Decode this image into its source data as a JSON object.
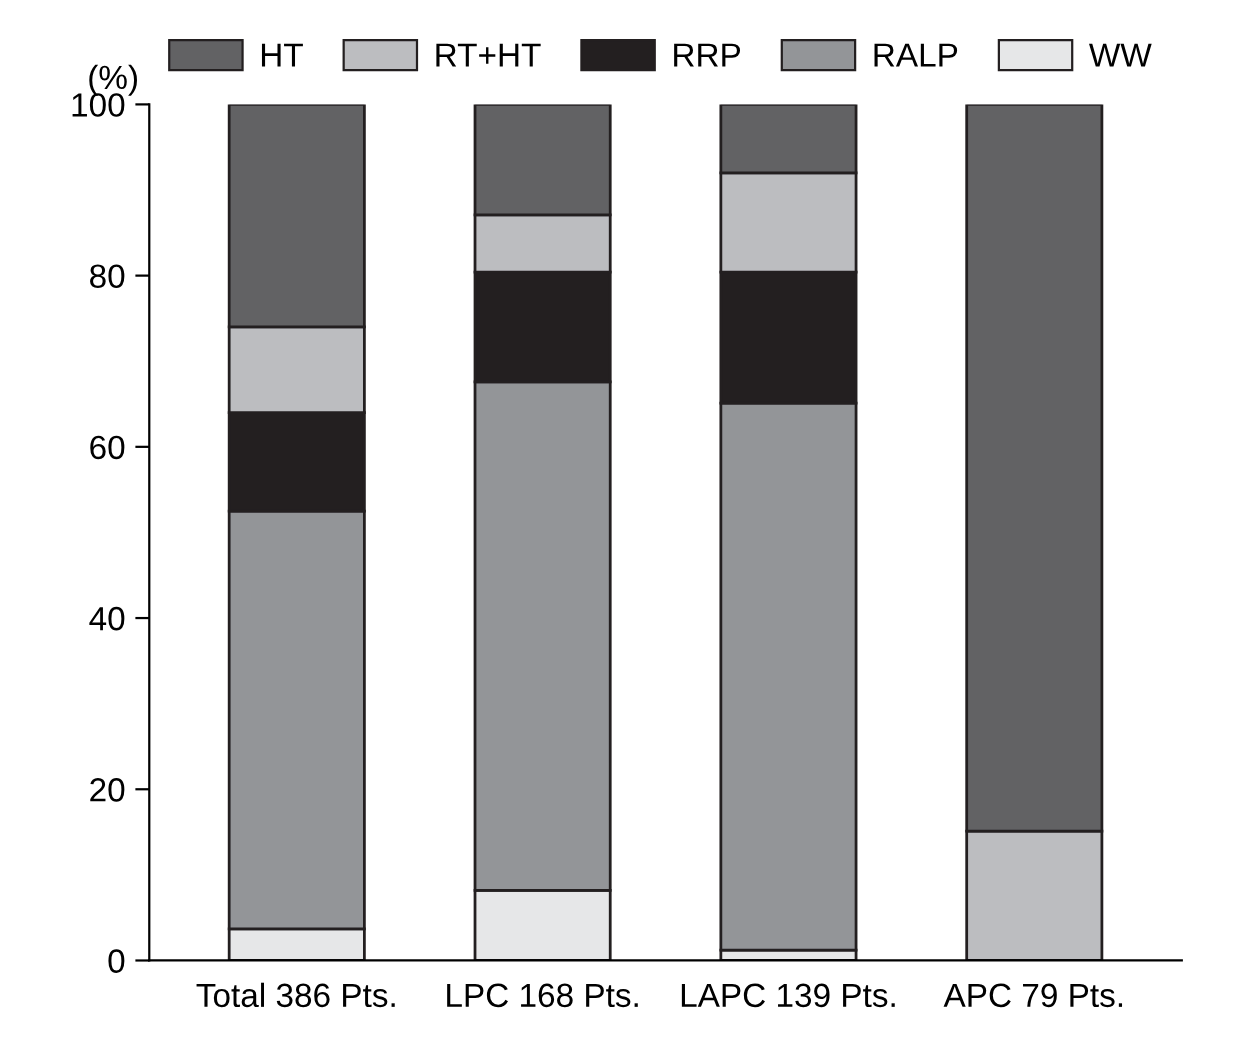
{
  "chart_data": {
    "type": "bar",
    "stacked": true,
    "ylabel": "(%)",
    "categories": [
      "Total 386 Pts.",
      "LPC 168 Pts.",
      "LAPC 139 Pts.",
      "APC 79 Pts."
    ],
    "series": [
      {
        "name": "WW",
        "color": "#e6e7e8",
        "values": [
          3.7,
          8.2,
          1.2,
          0
        ]
      },
      {
        "name": "RALP",
        "color": "#939598",
        "values": [
          48.8,
          59.4,
          63.9,
          0
        ]
      },
      {
        "name": "RRP",
        "color": "#231f20",
        "values": [
          11.5,
          12.8,
          15.3,
          0
        ]
      },
      {
        "name": "RT+HT",
        "color": "#bcbdc0",
        "values": [
          10.0,
          6.7,
          11.6,
          15.1
        ]
      },
      {
        "name": "HT",
        "color": "#626264",
        "values": [
          26.0,
          12.9,
          8.0,
          84.9
        ]
      }
    ],
    "ylim": [
      0,
      100
    ],
    "yticks": [
      0,
      20,
      40,
      60,
      80,
      100
    ],
    "grid": false,
    "legend": "top right"
  }
}
